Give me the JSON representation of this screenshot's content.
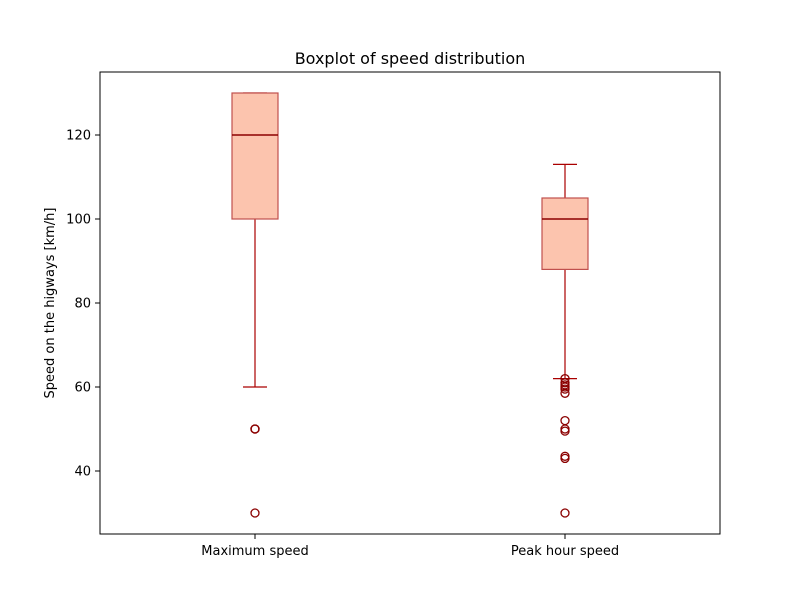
{
  "chart_data": {
    "type": "box",
    "title": "Boxplot of speed distribution",
    "xlabel": "",
    "ylabel": "Speed on the higways [km/h]",
    "ylim": [
      25,
      135
    ],
    "yticks": [
      40,
      60,
      80,
      100,
      120
    ],
    "grid": false,
    "colors": {
      "box_fill": "#fcc4ae",
      "box_edge": "#c0504d",
      "median": "#8b0000",
      "whisker": "#aa0000",
      "outlier": "#8b0000"
    },
    "categories": [
      "Maximum speed",
      "Peak hour speed"
    ],
    "boxes": [
      {
        "label": "Maximum speed",
        "whisker_low": 60,
        "q1": 100,
        "median": 120,
        "q3": 130,
        "whisker_high": 130,
        "outliers": [
          50,
          50,
          50,
          30
        ]
      },
      {
        "label": "Peak hour speed",
        "whisker_low": 62,
        "q1": 88,
        "median": 100,
        "q3": 105,
        "whisker_high": 113,
        "outliers": [
          62,
          61,
          60.5,
          60,
          59.5,
          58.5,
          52,
          50,
          49.5,
          43.5,
          43,
          30
        ]
      }
    ]
  }
}
